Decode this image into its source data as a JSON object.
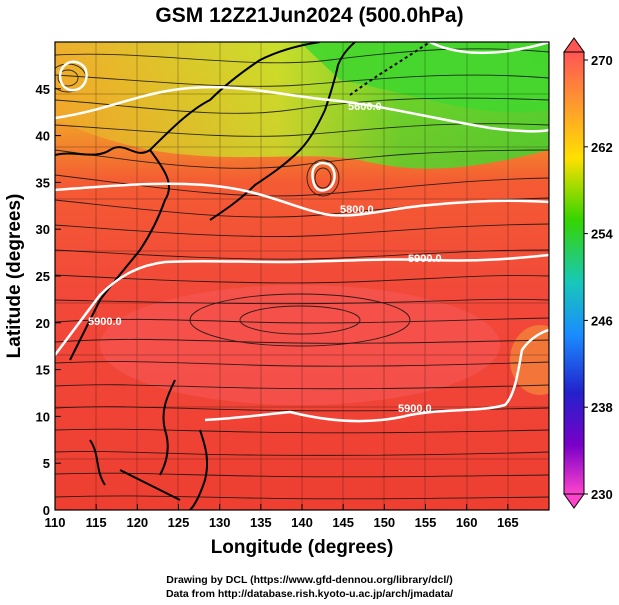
{
  "title": "GSM 12Z21Jun2024 (500.0hPa)",
  "x_axis": {
    "label": "Longitude (degrees)",
    "range": [
      110,
      170
    ],
    "ticks": [
      "110",
      "115",
      "120",
      "125",
      "130",
      "135",
      "140",
      "145",
      "150",
      "155",
      "160",
      "165"
    ]
  },
  "y_axis": {
    "label": "Latitude  (degrees)",
    "range": [
      0,
      50
    ],
    "ticks": [
      "0",
      "5",
      "10",
      "15",
      "20",
      "25",
      "30",
      "35",
      "40",
      "45"
    ]
  },
  "colorbar": {
    "labels": [
      "270",
      "262",
      "254",
      "246",
      "238",
      "230"
    ],
    "colors": [
      "#ff5555",
      "#ff9a2e",
      "#ffe000",
      "#36d400",
      "#18c8b8",
      "#1a8cff",
      "#2222cc",
      "#7a00c8",
      "#ff44cc"
    ]
  },
  "contours": [
    {
      "label": "5600.0"
    },
    {
      "label": "5800.0"
    },
    {
      "label": "5900.0"
    },
    {
      "label": "5900.0"
    },
    {
      "label": "5900.0"
    }
  ],
  "credits": {
    "line1": "Drawing by DCL (https://www.gfd-dennou.org/library/dcl/)",
    "line2": "Data from http://database.rish.kyoto-u.ac.jp/arch/jmadata/"
  }
}
